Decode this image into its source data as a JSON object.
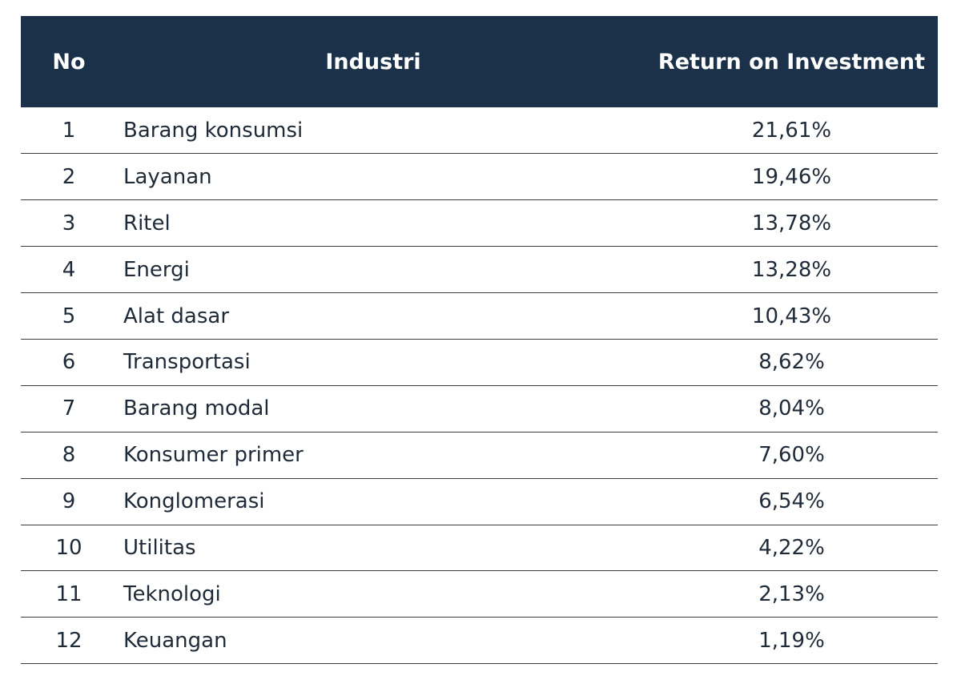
{
  "table": {
    "headers": {
      "no": "No",
      "industry": "Industri",
      "roi": "Return on Investment"
    },
    "rows": [
      {
        "no": "1",
        "industry": "Barang konsumsi",
        "roi": "21,61%"
      },
      {
        "no": "2",
        "industry": "Layanan",
        "roi": "19,46%"
      },
      {
        "no": "3",
        "industry": "Ritel",
        "roi": "13,78%"
      },
      {
        "no": "4",
        "industry": "Energi",
        "roi": "13,28%"
      },
      {
        "no": "5",
        "industry": "Alat dasar",
        "roi": "10,43%"
      },
      {
        "no": "6",
        "industry": "Transportasi",
        "roi": "8,62%"
      },
      {
        "no": "7",
        "industry": "Barang modal",
        "roi": "8,04%"
      },
      {
        "no": "8",
        "industry": "Konsumer primer",
        "roi": "7,60%"
      },
      {
        "no": "9",
        "industry": "Konglomerasi",
        "roi": "6,54%"
      },
      {
        "no": "10",
        "industry": "Utilitas",
        "roi": "4,22%"
      },
      {
        "no": "11",
        "industry": "Teknologi",
        "roi": "2,13%"
      },
      {
        "no": "12",
        "industry": "Keuangan",
        "roi": "1,19%"
      }
    ]
  },
  "colors": {
    "header_bg": "#1b3149",
    "header_text": "#ffffff",
    "body_text": "#1f2a38",
    "row_divider": "#3a3f45"
  }
}
